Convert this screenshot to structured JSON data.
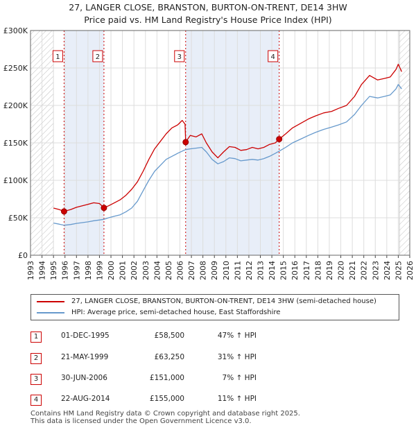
{
  "title_line1": "27, LANGER CLOSE, BRANSTON, BURTON-ON-TRENT, DE14 3HW",
  "title_line2": "Price paid vs. HM Land Registry's House Price Index (HPI)",
  "colors": {
    "property": "#cc0000",
    "hpi": "#6699cc",
    "shade": "#e8eef8",
    "grid": "#dddddd"
  },
  "legend": {
    "property_label": "27, LANGER CLOSE, BRANSTON, BURTON-ON-TRENT, DE14 3HW (semi-detached house)",
    "hpi_label": "HPI: Average price, semi-detached house, East Staffordshire"
  },
  "transactions": [
    {
      "num": "1",
      "date": "01-DEC-1995",
      "price": "£58,500",
      "hpi": "47% ↑ HPI"
    },
    {
      "num": "2",
      "date": "21-MAY-1999",
      "price": "£63,250",
      "hpi": "31% ↑ HPI"
    },
    {
      "num": "3",
      "date": "30-JUN-2006",
      "price": "£151,000",
      "hpi": "7% ↑ HPI"
    },
    {
      "num": "4",
      "date": "22-AUG-2014",
      "price": "£155,000",
      "hpi": "11% ↑ HPI"
    }
  ],
  "footer_line1": "Contains HM Land Registry data © Crown copyright and database right 2025.",
  "footer_line2": "This data is licensed under the Open Government Licence v3.0.",
  "chart_data": {
    "type": "line",
    "title": "27, LANGER CLOSE, BRANSTON, BURTON-ON-TRENT, DE14 3HW",
    "subtitle": "Price paid vs. HM Land Registry's House Price Index (HPI)",
    "xlabel": "",
    "ylabel": "",
    "xlim": [
      1993,
      2026
    ],
    "ylim": [
      0,
      300000
    ],
    "y_ticks": [
      0,
      50000,
      100000,
      150000,
      200000,
      250000,
      300000
    ],
    "y_tick_labels": [
      "£0",
      "£50K",
      "£100K",
      "£150K",
      "£200K",
      "£250K",
      "£300K"
    ],
    "x_ticks": [
      1993,
      1994,
      1995,
      1996,
      1997,
      1998,
      1999,
      2000,
      2001,
      2002,
      2003,
      2004,
      2005,
      2006,
      2007,
      2008,
      2009,
      2010,
      2011,
      2012,
      2013,
      2014,
      2015,
      2016,
      2017,
      2018,
      2019,
      2020,
      2021,
      2022,
      2023,
      2024,
      2025,
      2026
    ],
    "hatched_ranges": [
      [
        1993,
        1995.0
      ],
      [
        2025.1,
        2026
      ]
    ],
    "shaded_ranges": [
      [
        1995.92,
        1999.39
      ],
      [
        2006.5,
        2014.64
      ]
    ],
    "sales": [
      {
        "label": "1",
        "x": 1995.92,
        "price": 58500
      },
      {
        "label": "2",
        "x": 1999.39,
        "price": 63250
      },
      {
        "label": "3",
        "x": 2006.5,
        "price": 151000
      },
      {
        "label": "4",
        "x": 2014.64,
        "price": 155000
      }
    ],
    "series": [
      {
        "name": "27, LANGER CLOSE, BRANSTON, BURTON-ON-TRENT, DE14 3HW (semi-detached house)",
        "color": "#cc0000",
        "points": [
          [
            1995.0,
            63000
          ],
          [
            1995.5,
            61000
          ],
          [
            1995.92,
            58500
          ],
          [
            1996.5,
            61000
          ],
          [
            1997.0,
            64000
          ],
          [
            1997.5,
            66000
          ],
          [
            1998.0,
            68000
          ],
          [
            1998.5,
            70000
          ],
          [
            1999.0,
            69000
          ],
          [
            1999.39,
            63250
          ],
          [
            1999.8,
            66000
          ],
          [
            2000.3,
            70000
          ],
          [
            2000.8,
            74000
          ],
          [
            2001.3,
            80000
          ],
          [
            2001.8,
            88000
          ],
          [
            2002.3,
            98000
          ],
          [
            2002.8,
            112000
          ],
          [
            2003.3,
            128000
          ],
          [
            2003.8,
            142000
          ],
          [
            2004.3,
            152000
          ],
          [
            2004.8,
            162000
          ],
          [
            2005.3,
            170000
          ],
          [
            2005.8,
            174000
          ],
          [
            2006.2,
            180000
          ],
          [
            2006.45,
            175000
          ],
          [
            2006.5,
            151000
          ],
          [
            2006.9,
            160000
          ],
          [
            2007.4,
            158000
          ],
          [
            2007.9,
            162000
          ],
          [
            2008.3,
            150000
          ],
          [
            2008.8,
            138000
          ],
          [
            2009.3,
            130000
          ],
          [
            2009.8,
            138000
          ],
          [
            2010.3,
            145000
          ],
          [
            2010.8,
            144000
          ],
          [
            2011.3,
            140000
          ],
          [
            2011.8,
            141000
          ],
          [
            2012.3,
            144000
          ],
          [
            2012.8,
            142000
          ],
          [
            2013.3,
            144000
          ],
          [
            2013.8,
            148000
          ],
          [
            2014.3,
            150000
          ],
          [
            2014.64,
            155000
          ],
          [
            2015.2,
            162000
          ],
          [
            2015.8,
            170000
          ],
          [
            2016.5,
            176000
          ],
          [
            2017.2,
            182000
          ],
          [
            2017.8,
            186000
          ],
          [
            2018.5,
            190000
          ],
          [
            2019.2,
            192000
          ],
          [
            2019.8,
            196000
          ],
          [
            2020.5,
            200000
          ],
          [
            2021.2,
            212000
          ],
          [
            2021.8,
            228000
          ],
          [
            2022.5,
            240000
          ],
          [
            2023.2,
            234000
          ],
          [
            2023.8,
            236000
          ],
          [
            2024.3,
            238000
          ],
          [
            2024.8,
            248000
          ],
          [
            2025.0,
            255000
          ],
          [
            2025.3,
            245000
          ]
        ]
      },
      {
        "name": "HPI: Average price, semi-detached house, East Staffordshire",
        "color": "#6699cc",
        "points": [
          [
            1995.0,
            43000
          ],
          [
            1995.5,
            41500
          ],
          [
            1995.92,
            40000
          ],
          [
            1996.5,
            41000
          ],
          [
            1997.0,
            42500
          ],
          [
            1997.5,
            43500
          ],
          [
            1998.0,
            44500
          ],
          [
            1998.5,
            46000
          ],
          [
            1999.0,
            47000
          ],
          [
            1999.39,
            48000
          ],
          [
            1999.8,
            50000
          ],
          [
            2000.3,
            52000
          ],
          [
            2000.8,
            54000
          ],
          [
            2001.3,
            58000
          ],
          [
            2001.8,
            63000
          ],
          [
            2002.3,
            72000
          ],
          [
            2002.8,
            86000
          ],
          [
            2003.3,
            100000
          ],
          [
            2003.8,
            112000
          ],
          [
            2004.3,
            120000
          ],
          [
            2004.8,
            128000
          ],
          [
            2005.3,
            132000
          ],
          [
            2005.8,
            136000
          ],
          [
            2006.2,
            139000
          ],
          [
            2006.5,
            141000
          ],
          [
            2006.9,
            142000
          ],
          [
            2007.4,
            143000
          ],
          [
            2007.9,
            144000
          ],
          [
            2008.3,
            138000
          ],
          [
            2008.8,
            128000
          ],
          [
            2009.3,
            122000
          ],
          [
            2009.8,
            125000
          ],
          [
            2010.3,
            130000
          ],
          [
            2010.8,
            129000
          ],
          [
            2011.3,
            126000
          ],
          [
            2011.8,
            127000
          ],
          [
            2012.3,
            128000
          ],
          [
            2012.8,
            127000
          ],
          [
            2013.3,
            129000
          ],
          [
            2013.8,
            132000
          ],
          [
            2014.3,
            136000
          ],
          [
            2014.64,
            139000
          ],
          [
            2015.2,
            144000
          ],
          [
            2015.8,
            150000
          ],
          [
            2016.5,
            155000
          ],
          [
            2017.2,
            160000
          ],
          [
            2017.8,
            164000
          ],
          [
            2018.5,
            168000
          ],
          [
            2019.2,
            171000
          ],
          [
            2019.8,
            174000
          ],
          [
            2020.5,
            178000
          ],
          [
            2021.2,
            188000
          ],
          [
            2021.8,
            200000
          ],
          [
            2022.5,
            212000
          ],
          [
            2023.2,
            210000
          ],
          [
            2023.8,
            212000
          ],
          [
            2024.3,
            214000
          ],
          [
            2024.8,
            222000
          ],
          [
            2025.0,
            228000
          ],
          [
            2025.3,
            222000
          ]
        ]
      }
    ]
  }
}
